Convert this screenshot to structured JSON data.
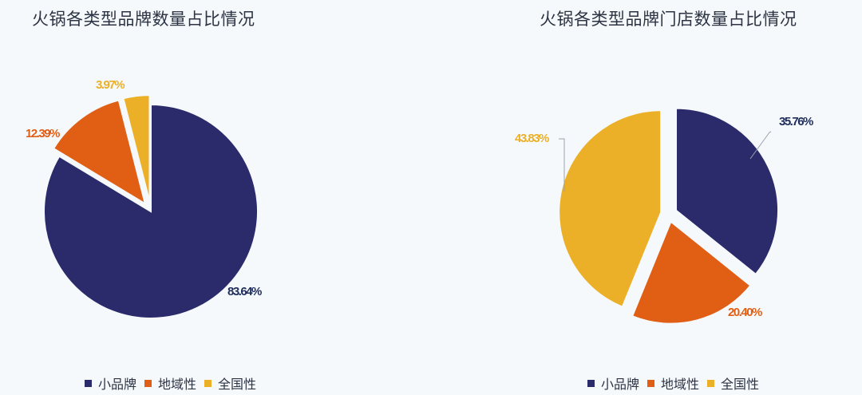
{
  "colors": {
    "small_brand": "#2b2a6b",
    "regional": "#e05f14",
    "national": "#ebb028",
    "small_brand_label": "#1f2d5a"
  },
  "legend": [
    "小品牌",
    "地域性",
    "全国性"
  ],
  "chart_data": [
    {
      "type": "pie",
      "title": "火锅各类型品牌数量占比情况",
      "categories": [
        "小品牌",
        "地域性",
        "全国性"
      ],
      "values": [
        83.64,
        12.39,
        3.97
      ],
      "labels": [
        "83.64%",
        "12.39%",
        "3.97%"
      ],
      "exploded": [
        false,
        true,
        true
      ],
      "legend_position": "bottom"
    },
    {
      "type": "pie",
      "title": "火锅各类型品牌门店数量占比情况",
      "categories": [
        "小品牌",
        "地域性",
        "全国性"
      ],
      "values": [
        35.76,
        20.4,
        43.83
      ],
      "labels": [
        "35.76%",
        "20.40%",
        "43.83%"
      ],
      "exploded": [
        true,
        true,
        true
      ],
      "legend_position": "bottom"
    }
  ]
}
